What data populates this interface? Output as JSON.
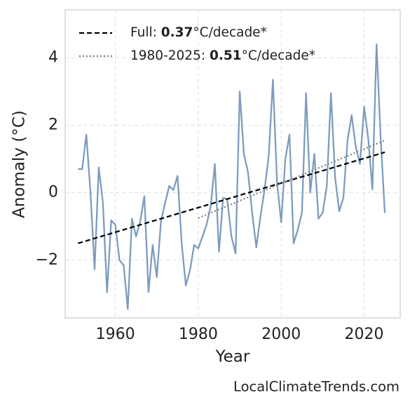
{
  "chart_data": {
    "type": "line",
    "x_label": "Year",
    "y_label": "Anomaly (°C)",
    "watermark": "LocalClimateTrends.com",
    "xlim": [
      1947.9,
      2028.7
    ],
    "ylim": [
      -3.71,
      5.42
    ],
    "xticks": [
      1960,
      1980,
      2000,
      2020
    ],
    "yticks": [
      {
        "value": -2,
        "label": "−2"
      },
      0,
      2,
      4
    ],
    "grid": true,
    "series": [
      {
        "color": "#7d9cbe",
        "x": [
          1951,
          1952,
          1953,
          1954,
          1955,
          1956,
          1957,
          1958,
          1959,
          1960,
          1961,
          1962,
          1963,
          1964,
          1965,
          1966,
          1967,
          1968,
          1969,
          1970,
          1971,
          1972,
          1973,
          1974,
          1975,
          1976,
          1977,
          1978,
          1979,
          1980,
          1981,
          1982,
          1983,
          1984,
          1985,
          1986,
          1987,
          1988,
          1989,
          1990,
          1991,
          1992,
          1993,
          1994,
          1995,
          1996,
          1997,
          1998,
          1999,
          2000,
          2001,
          2002,
          2003,
          2004,
          2005,
          2006,
          2007,
          2008,
          2009,
          2010,
          2011,
          2012,
          2013,
          2014,
          2015,
          2016,
          2017,
          2018,
          2019,
          2020,
          2021,
          2022,
          2023,
          2024,
          2025
        ],
        "values": [
          0.7,
          0.7,
          1.72,
          0.0,
          -2.27,
          0.75,
          -0.3,
          -2.95,
          -0.82,
          -0.95,
          -2.0,
          -2.15,
          -3.45,
          -0.77,
          -1.3,
          -0.85,
          -0.1,
          -2.95,
          -1.55,
          -2.5,
          -0.85,
          -0.3,
          0.2,
          0.08,
          0.5,
          -1.5,
          -2.75,
          -2.3,
          -1.55,
          -1.65,
          -1.3,
          -0.95,
          -0.4,
          0.85,
          -1.75,
          -0.15,
          -0.2,
          -1.3,
          -1.8,
          3.0,
          1.15,
          0.6,
          -0.6,
          -1.62,
          -0.7,
          0.1,
          1.1,
          3.35,
          0.3,
          -0.88,
          1.0,
          1.72,
          -1.5,
          -1.1,
          -0.6,
          2.95,
          0.0,
          1.15,
          -0.77,
          -0.6,
          0.2,
          2.95,
          0.45,
          -0.55,
          -0.15,
          1.55,
          2.3,
          1.35,
          0.85,
          2.55,
          1.6,
          0.1,
          4.4,
          1.6,
          -0.6
        ]
      }
    ],
    "trends": [
      {
        "label_prefix": "Full: ",
        "slope": 0.37,
        "label_suffix": "°C/decade*",
        "color": "#000000",
        "dash": "dashed",
        "x": [
          1951,
          2025
        ],
        "values": [
          -1.5,
          1.2
        ]
      },
      {
        "label_prefix": "1980-2025: ",
        "slope": 0.51,
        "label_suffix": "°C/decade*",
        "color": "#808080",
        "dash": "dotted",
        "x": [
          1980,
          2025
        ],
        "values": [
          -0.75,
          1.55
        ]
      }
    ]
  }
}
